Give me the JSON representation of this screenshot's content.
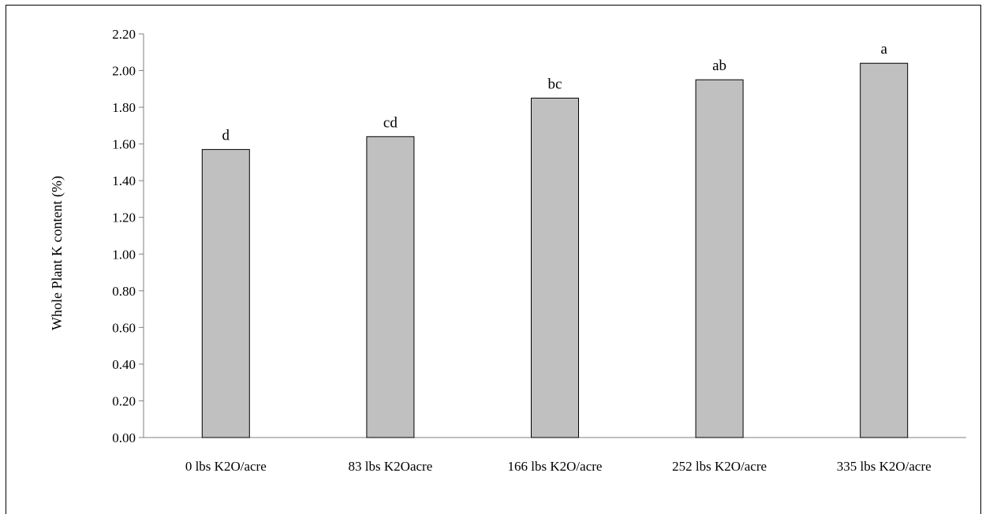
{
  "chart_data": {
    "type": "bar",
    "title": "",
    "xlabel": "",
    "ylabel": "Whole Plant K content (%)",
    "ylim": [
      0,
      2.2
    ],
    "ytick_step": 0.2,
    "grid": false,
    "legend": "none",
    "categories": [
      "0 lbs K2O/acre",
      "83 lbs K2Oacre",
      "166 lbs K2O/acre",
      "252 lbs K2O/acre",
      "335 lbs K2O/acre"
    ],
    "values": [
      1.57,
      1.64,
      1.85,
      1.95,
      2.04
    ],
    "bar_labels": [
      "d",
      "cd",
      "bc",
      "ab",
      "a"
    ],
    "colors": {
      "bar_fill": "#c0c0c0",
      "bar_stroke": "#000000"
    }
  }
}
